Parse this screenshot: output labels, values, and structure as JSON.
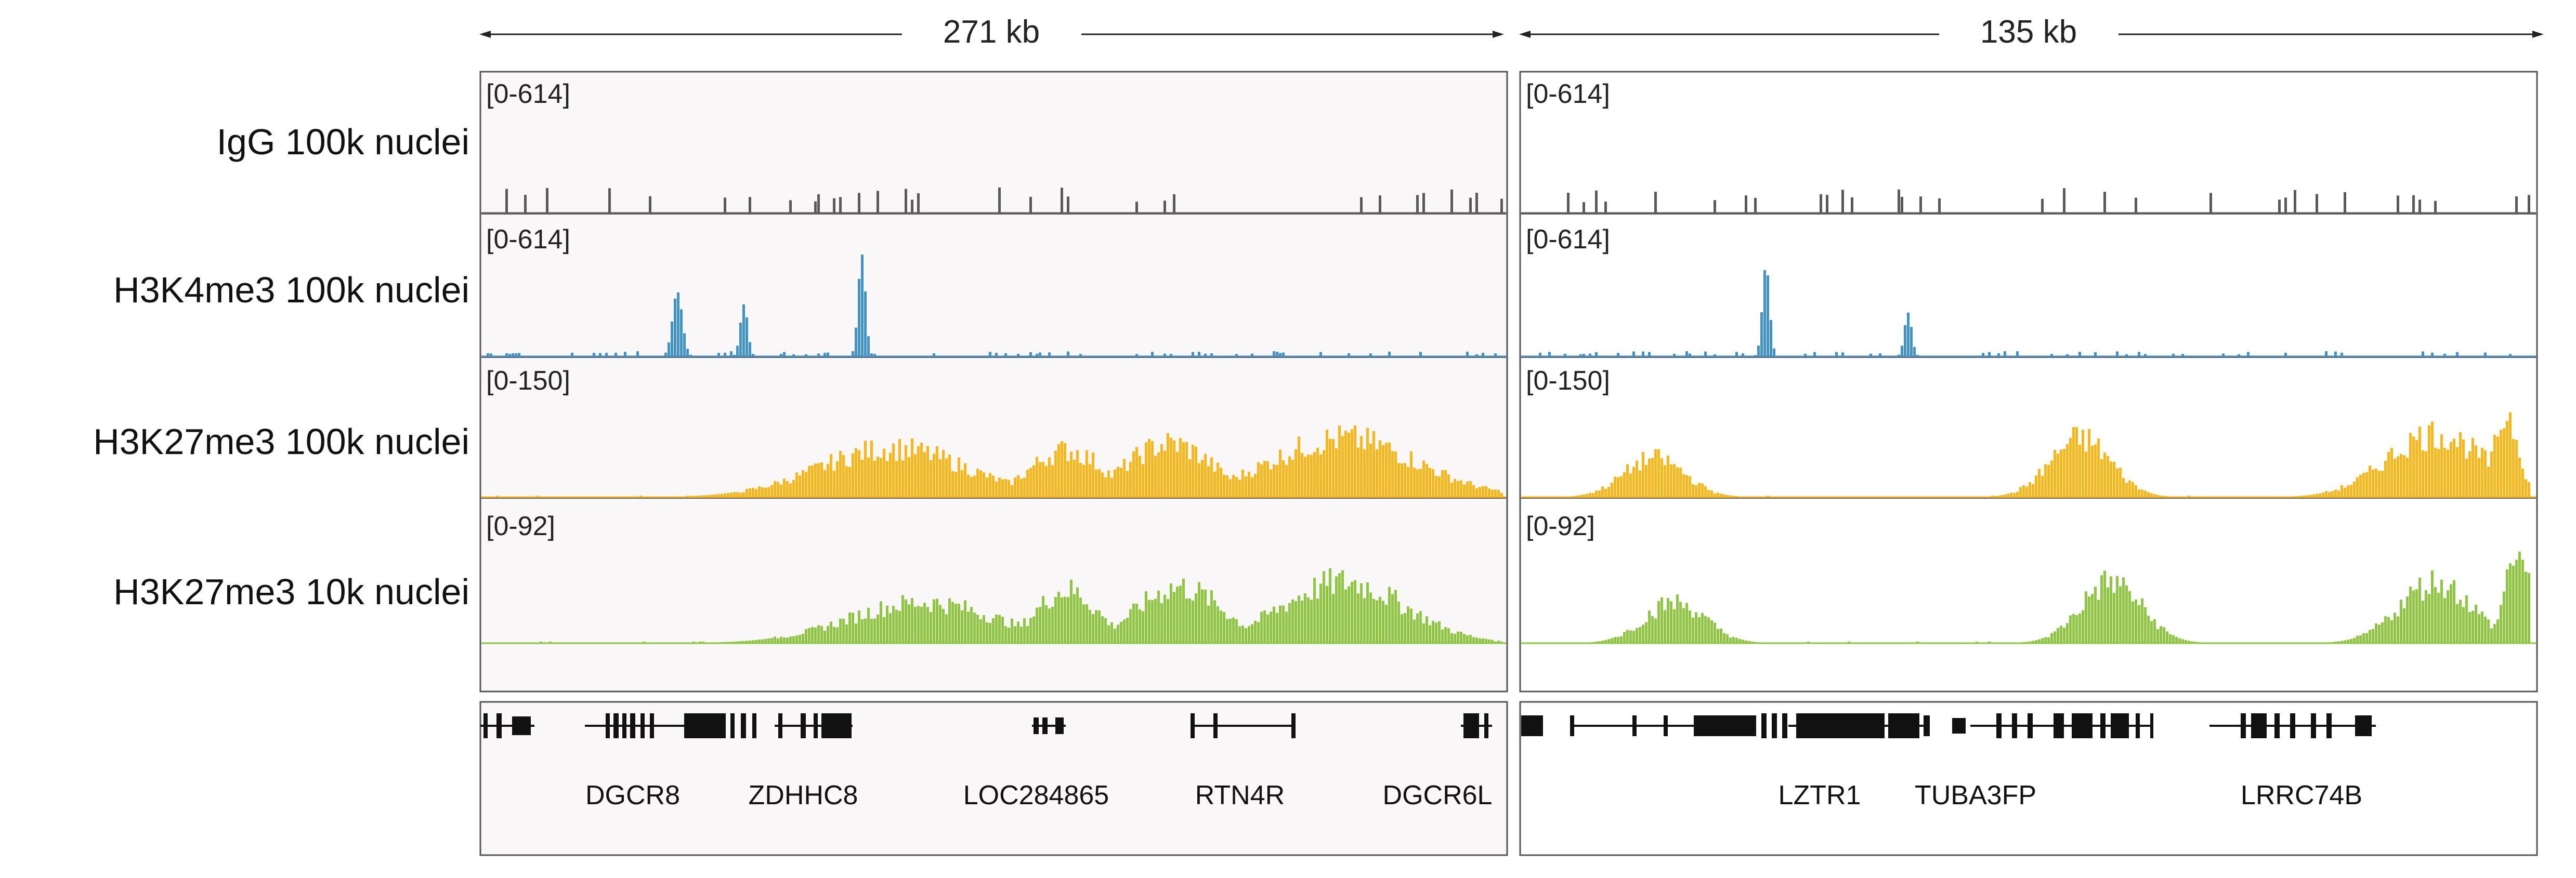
{
  "regions": [
    {
      "scale_label": "271 kb",
      "genes": [
        "DGCR8",
        "ZDHHC8",
        "LOC284865",
        "RTN4R",
        "DGCR6L"
      ]
    },
    {
      "scale_label": "135 kb",
      "genes": [
        "LZTR1",
        "TUBA3FP",
        "LRRC74B"
      ]
    }
  ],
  "tracks": [
    {
      "name": "IgG 100k nuclei",
      "range": "[0-614]",
      "max": 614,
      "color": "#595959"
    },
    {
      "name": "H3K4me3 100k nuclei",
      "range": "[0-614]",
      "max": 614,
      "color": "#3f92cc"
    },
    {
      "name": "H3K27me3 100k nuclei",
      "range": "[0-150]",
      "max": 150,
      "color": "#fdb515"
    },
    {
      "name": "H3K27me3 10k nuclei",
      "range": "[0-92]",
      "max": 92,
      "color": "#8dc63f"
    }
  ],
  "colors": {
    "panel_bg": "#f9f7f7",
    "border": "#555555",
    "gene": "#111111"
  }
}
